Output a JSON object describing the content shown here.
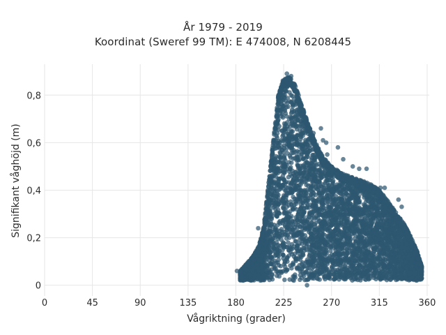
{
  "chart_data": {
    "type": "scatter",
    "title_line1": "År 1979 - 2019",
    "title_line2": "Koordinat (Sweref 99 TM): E 474008, N 6208445",
    "xlabel": "Vågriktning (grader)",
    "ylabel": "Signifikant våghöjd (m)",
    "xlim": [
      0,
      362
    ],
    "ylim": [
      -0.045,
      0.93
    ],
    "xticks": [
      0,
      45,
      90,
      135,
      180,
      225,
      270,
      315,
      360
    ],
    "xtick_labels": [
      "0",
      "45",
      "90",
      "135",
      "180",
      "225",
      "270",
      "315",
      "360"
    ],
    "yticks": [
      0,
      0.2,
      0.4,
      0.6,
      0.8
    ],
    "ytick_labels": [
      "0",
      "0,2",
      "0,4",
      "0,6",
      "0,8"
    ],
    "grid": true,
    "marker_color": "#2e5870",
    "marker_opacity": 0.72,
    "envelope": {
      "description_of_distribution": "dense cloud bounded below at ~0.02 m",
      "upper_boundary": [
        [
          184,
          0.06
        ],
        [
          190,
          0.09
        ],
        [
          196,
          0.12
        ],
        [
          202,
          0.17
        ],
        [
          206,
          0.24
        ],
        [
          208,
          0.32
        ],
        [
          210,
          0.4
        ],
        [
          212,
          0.48
        ],
        [
          214,
          0.56
        ],
        [
          216,
          0.64
        ],
        [
          218,
          0.72
        ],
        [
          220,
          0.8
        ],
        [
          224,
          0.86
        ],
        [
          230,
          0.88
        ],
        [
          236,
          0.84
        ],
        [
          242,
          0.76
        ],
        [
          248,
          0.68
        ],
        [
          255,
          0.6
        ],
        [
          262,
          0.54
        ],
        [
          270,
          0.5
        ],
        [
          280,
          0.47
        ],
        [
          292,
          0.45
        ],
        [
          305,
          0.43
        ],
        [
          315,
          0.4
        ],
        [
          322,
          0.36
        ],
        [
          330,
          0.31
        ],
        [
          338,
          0.26
        ],
        [
          344,
          0.21
        ],
        [
          350,
          0.15
        ],
        [
          355,
          0.08
        ]
      ],
      "lower_bound": 0.02
    },
    "outliers": [
      [
        181,
        0.06
      ],
      [
        187,
        0.02
      ],
      [
        192,
        0.1
      ],
      [
        201,
        0.24
      ],
      [
        247,
        0.0
      ],
      [
        241,
        0.69
      ],
      [
        245,
        0.66
      ],
      [
        246,
        0.58
      ],
      [
        253,
        0.64
      ],
      [
        260,
        0.66
      ],
      [
        262,
        0.61
      ],
      [
        265,
        0.6
      ],
      [
        266,
        0.55
      ],
      [
        276,
        0.58
      ],
      [
        281,
        0.53
      ],
      [
        290,
        0.5
      ],
      [
        296,
        0.49
      ],
      [
        303,
        0.49
      ],
      [
        316,
        0.41
      ],
      [
        320,
        0.41
      ],
      [
        333,
        0.36
      ],
      [
        336,
        0.33
      ],
      [
        355,
        0.06
      ],
      [
        352,
        0.09
      ],
      [
        349,
        0.14
      ],
      [
        232,
        0.88
      ],
      [
        228,
        0.89
      ]
    ]
  }
}
